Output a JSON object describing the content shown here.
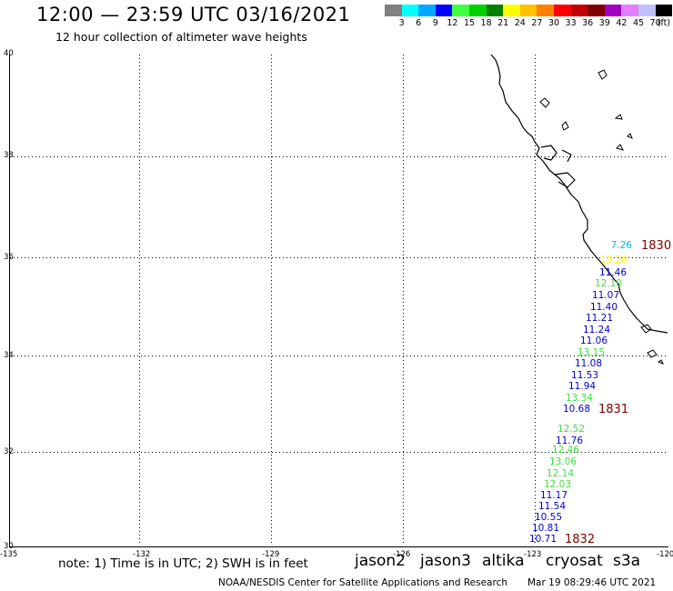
{
  "header": {
    "title": "12:00 — 23:59 UTC 03/16/2021",
    "subtitle": "12 hour collection of altimeter wave heights"
  },
  "legend": {
    "colors": [
      "#808080",
      "#00ffff",
      "#00a8ff",
      "#0000ff",
      "#40ff40",
      "#00d000",
      "#008000",
      "#ffff00",
      "#ffc000",
      "#ff8000",
      "#ff0000",
      "#c00000",
      "#800000",
      "#a000c0",
      "#e080ff",
      "#c0c0ff",
      "#000000"
    ],
    "labels": [
      "3",
      "6",
      "9",
      "12",
      "15",
      "18",
      "21",
      "24",
      "27",
      "30",
      "33",
      "36",
      "39",
      "42",
      "45",
      "70",
      "(ft)"
    ]
  },
  "map": {
    "lat_labels": [
      "40",
      "38",
      "36",
      "34",
      "32",
      "30"
    ],
    "lon_labels": [
      "-135",
      "-132",
      "-129",
      "-126",
      "-123",
      "-120"
    ],
    "wave_heights": [
      {
        "value": "7.26",
        "color": "#00bbdd"
      },
      {
        "value": "10.26",
        "color": "#ffff00"
      },
      {
        "value": "11.46",
        "color": "#0000cc"
      },
      {
        "value": "12.10",
        "color": "#40e040"
      },
      {
        "value": "11.07",
        "color": "#0000cc"
      },
      {
        "value": "11.40",
        "color": "#0000cc"
      },
      {
        "value": "11.21",
        "color": "#0000cc"
      },
      {
        "value": "11.24",
        "color": "#0000cc"
      },
      {
        "value": "11.06",
        "color": "#0000cc"
      },
      {
        "value": "13.15",
        "color": "#40e040"
      },
      {
        "value": "11.08",
        "color": "#0000cc"
      },
      {
        "value": "11.53",
        "color": "#0000cc"
      },
      {
        "value": "11.94",
        "color": "#0000cc"
      },
      {
        "value": "13.34",
        "color": "#40e040"
      },
      {
        "value": "10.68",
        "color": "#0000cc"
      },
      {
        "value": "12.52",
        "color": "#40e040"
      },
      {
        "value": "11.76",
        "color": "#0000cc"
      },
      {
        "value": "12.46",
        "color": "#40e040"
      },
      {
        "value": "13.06",
        "color": "#40e040"
      },
      {
        "value": "12.14",
        "color": "#40e040"
      },
      {
        "value": "12.03",
        "color": "#40e040"
      },
      {
        "value": "11.17",
        "color": "#0000cc"
      },
      {
        "value": "11.54",
        "color": "#0000cc"
      },
      {
        "value": "10.55",
        "color": "#0000cc"
      },
      {
        "value": "10.81",
        "color": "#0000cc"
      },
      {
        "value": "10.71",
        "color": "#0000cc"
      }
    ],
    "time_labels": [
      {
        "value": "1830",
        "color": "#800000"
      },
      {
        "value": "1831",
        "color": "#800000"
      },
      {
        "value": "1832",
        "color": "#800000"
      }
    ]
  },
  "footer": {
    "note": "note:  1) Time is in UTC;  2) SWH is in feet",
    "satellites": [
      {
        "name": "jason2",
        "color": "#0000cc"
      },
      {
        "name": "jason3",
        "color": "#008000"
      },
      {
        "name": "altika",
        "color": "#ff8000"
      },
      {
        "name": "cryosat",
        "color": "#ff0000"
      },
      {
        "name": "s3a",
        "color": "#800000"
      }
    ],
    "credit": "NOAA/NESDIS Center for Satellite Applications and Research",
    "timestamp": "Mar 19 08:29:46 UTC 2021"
  }
}
